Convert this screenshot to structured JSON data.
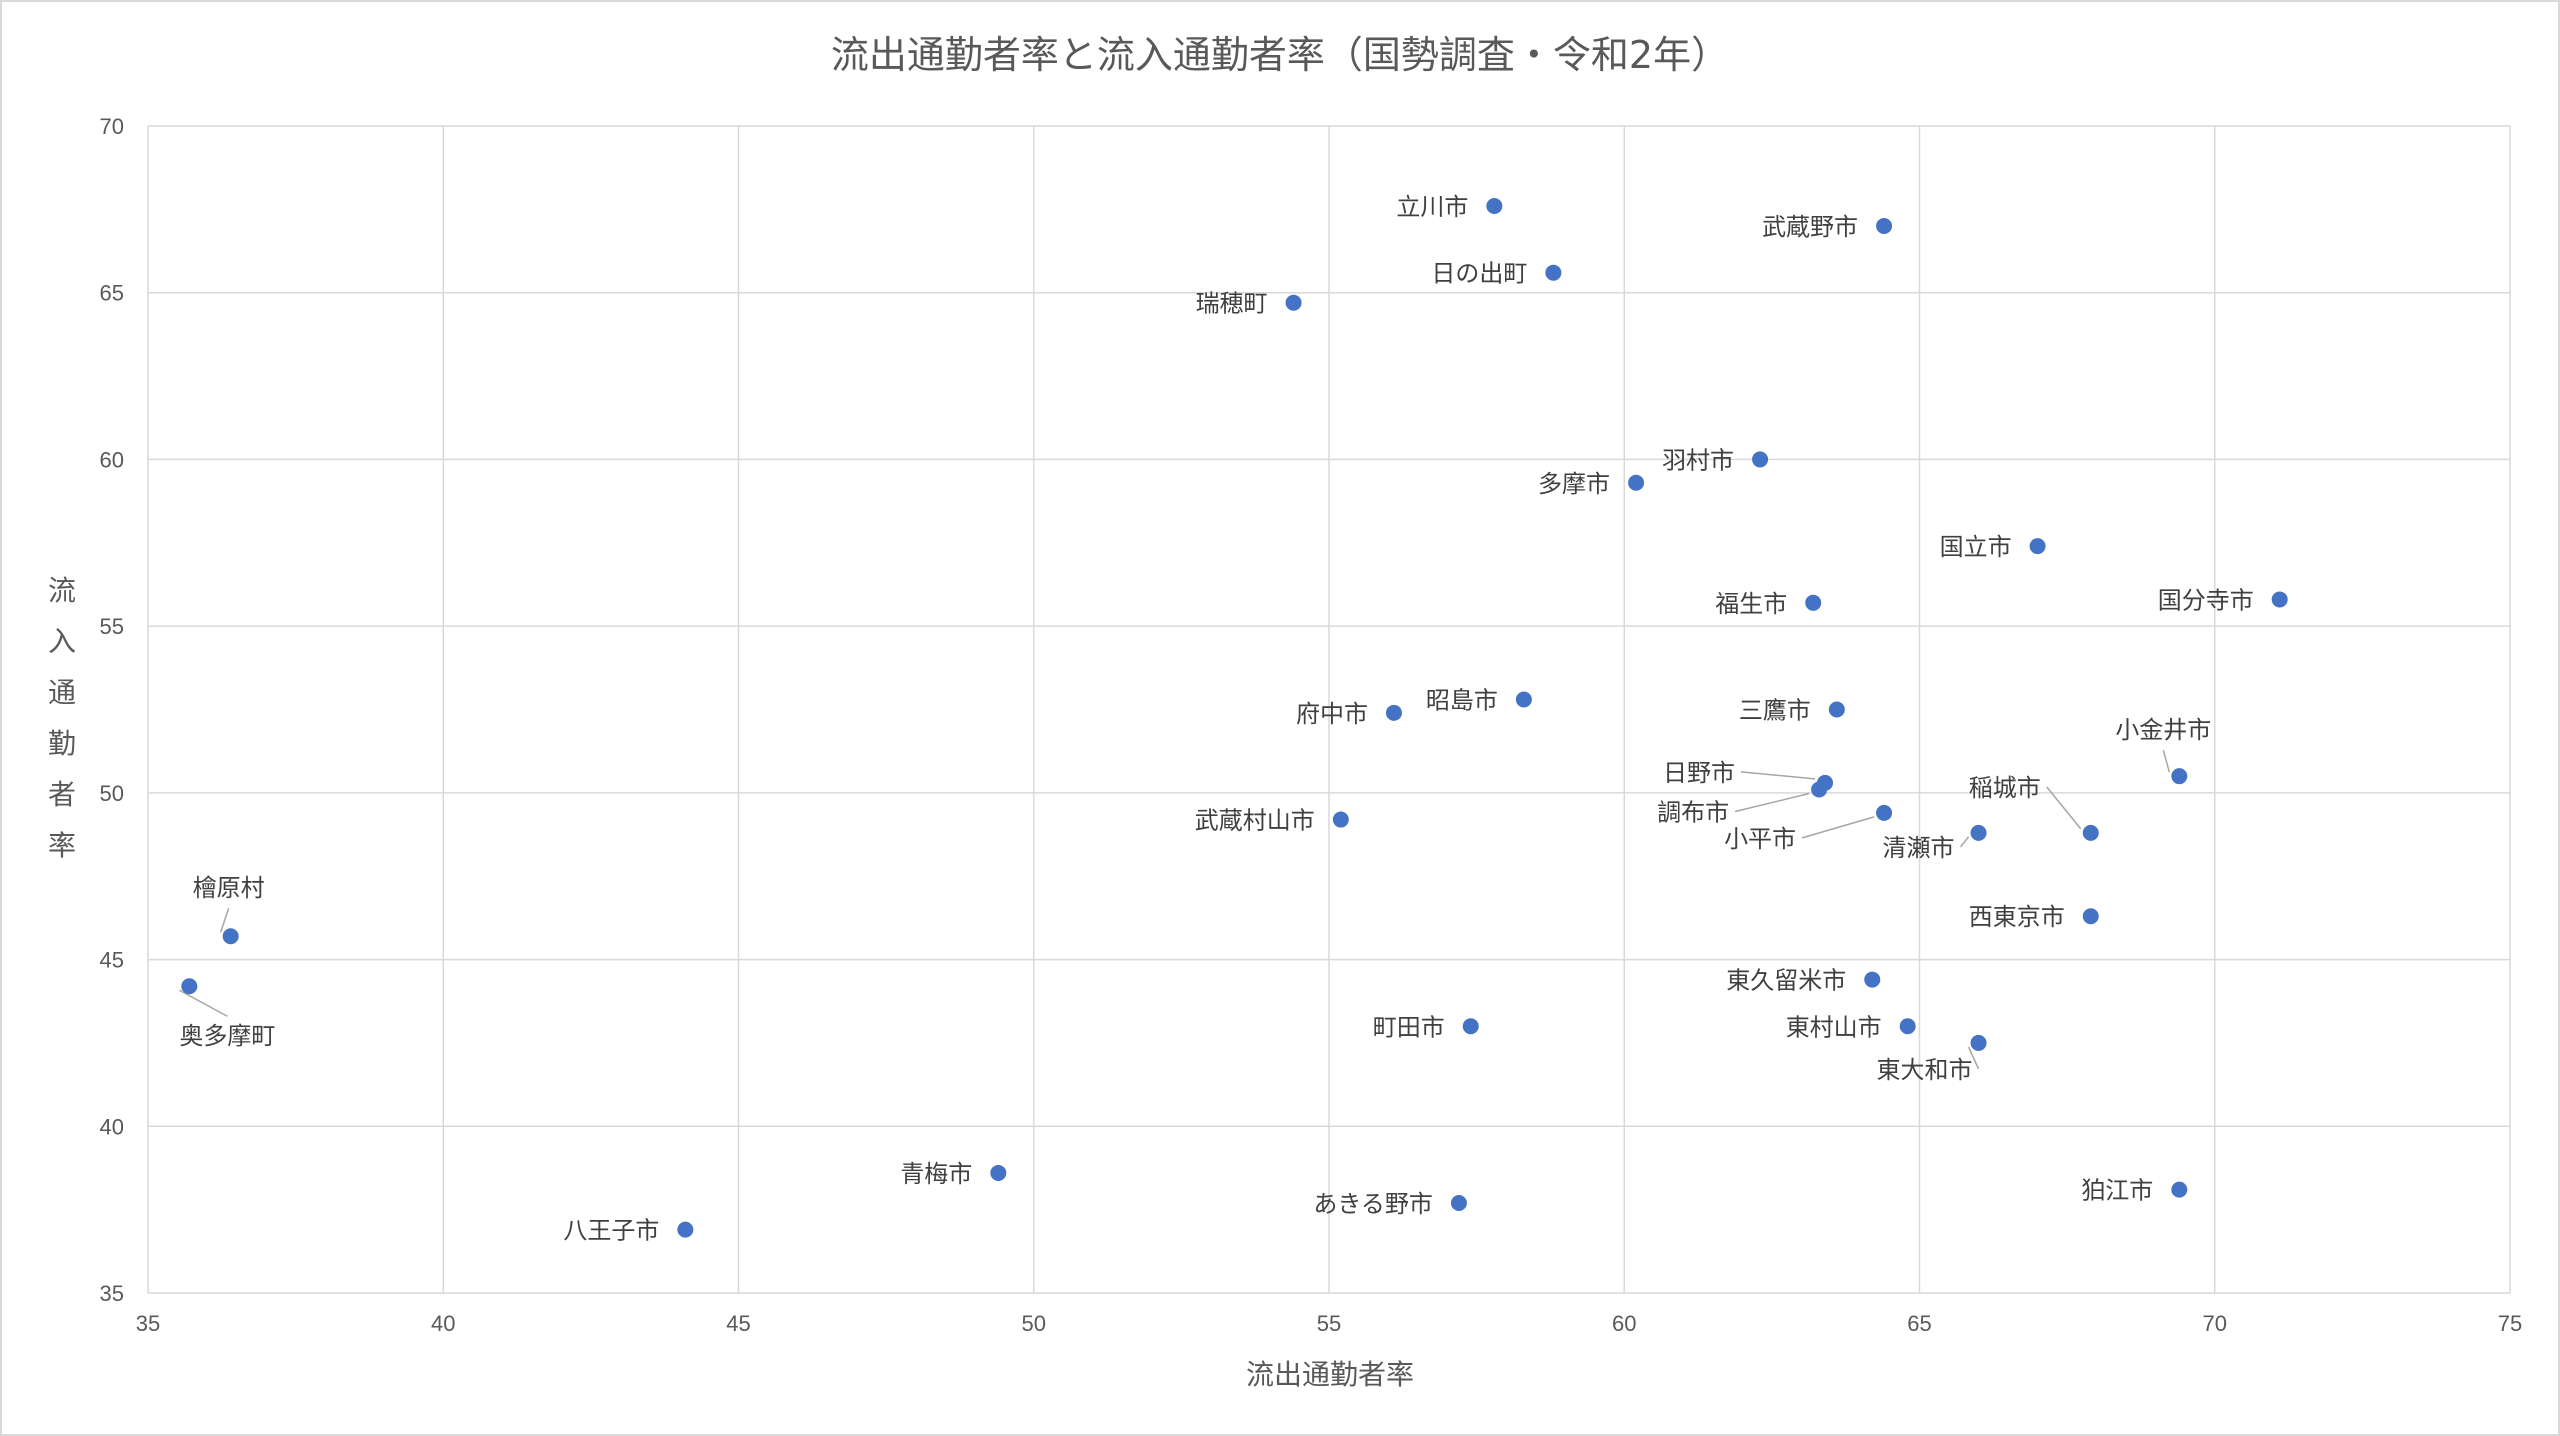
{
  "chart_data": {
    "type": "scatter",
    "title": "流出通勤者率と流入通勤者率（国勢調査・令和2年）",
    "xlabel": "流出通勤者率",
    "ylabel": "流入通勤者率",
    "xlim": [
      35,
      75
    ],
    "ylim": [
      35,
      70
    ],
    "xticks": [
      "35",
      "40",
      "45",
      "50",
      "55",
      "60",
      "65",
      "70",
      "75"
    ],
    "yticks": [
      "35",
      "40",
      "45",
      "50",
      "55",
      "60",
      "65",
      "70"
    ],
    "grid": true,
    "marker_color": "#4472c4",
    "points": [
      {
        "label": "立川市",
        "x": 57.8,
        "y": 67.6
      },
      {
        "label": "武蔵野市",
        "x": 64.4,
        "y": 67.0
      },
      {
        "label": "日の出町",
        "x": 58.8,
        "y": 65.6
      },
      {
        "label": "瑞穂町",
        "x": 54.4,
        "y": 64.7
      },
      {
        "label": "羽村市",
        "x": 62.3,
        "y": 60.0
      },
      {
        "label": "多摩市",
        "x": 60.2,
        "y": 59.3
      },
      {
        "label": "国立市",
        "x": 67.0,
        "y": 57.4
      },
      {
        "label": "国分寺市",
        "x": 71.1,
        "y": 55.8
      },
      {
        "label": "福生市",
        "x": 63.2,
        "y": 55.7
      },
      {
        "label": "昭島市",
        "x": 58.3,
        "y": 52.8
      },
      {
        "label": "三鷹市",
        "x": 63.6,
        "y": 52.5
      },
      {
        "label": "府中市",
        "x": 56.1,
        "y": 52.4
      },
      {
        "label": "小金井市",
        "x": 69.4,
        "y": 50.5
      },
      {
        "label": "日野市",
        "x": 63.4,
        "y": 50.3
      },
      {
        "label": "調布市",
        "x": 63.3,
        "y": 50.1
      },
      {
        "label": "小平市",
        "x": 64.4,
        "y": 49.4
      },
      {
        "label": "武蔵村山市",
        "x": 55.2,
        "y": 49.2
      },
      {
        "label": "稲城市",
        "x": 67.9,
        "y": 48.8
      },
      {
        "label": "清瀬市",
        "x": 66.0,
        "y": 48.8
      },
      {
        "label": "西東京市",
        "x": 67.9,
        "y": 46.3
      },
      {
        "label": "檜原村",
        "x": 36.4,
        "y": 45.7
      },
      {
        "label": "東久留米市",
        "x": 64.2,
        "y": 44.4
      },
      {
        "label": "奥多摩町",
        "x": 35.7,
        "y": 44.2
      },
      {
        "label": "町田市",
        "x": 57.4,
        "y": 43.0
      },
      {
        "label": "東村山市",
        "x": 64.8,
        "y": 43.0
      },
      {
        "label": "東大和市",
        "x": 66.0,
        "y": 42.5
      },
      {
        "label": "青梅市",
        "x": 49.4,
        "y": 38.6
      },
      {
        "label": "狛江市",
        "x": 69.4,
        "y": 38.1
      },
      {
        "label": "あきる野市",
        "x": 57.2,
        "y": 37.7
      },
      {
        "label": "八王子市",
        "x": 44.1,
        "y": 36.9
      }
    ]
  }
}
